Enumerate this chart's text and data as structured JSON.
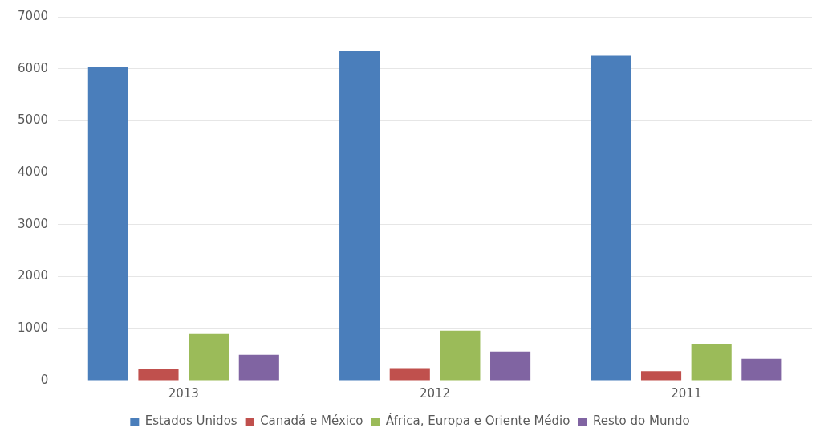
{
  "chart_data": {
    "type": "bar",
    "categories": [
      "2013",
      "2012",
      "2011"
    ],
    "series": [
      {
        "name": "Estados Unidos",
        "color": "#4a7ebb",
        "values": [
          6030,
          6350,
          6250
        ]
      },
      {
        "name": "Canadá e México",
        "color": "#c0504d",
        "values": [
          220,
          240,
          180
        ]
      },
      {
        "name": "África, Europa e Oriente Médio",
        "color": "#9bbb59",
        "values": [
          900,
          960,
          700
        ]
      },
      {
        "name": "Resto do Mundo",
        "color": "#8064a2",
        "values": [
          500,
          560,
          420
        ]
      }
    ],
    "ylim": [
      0,
      7000
    ],
    "yticks": [
      0,
      1000,
      2000,
      3000,
      4000,
      5000,
      6000,
      7000
    ],
    "grid": "y",
    "legend": "bottom"
  }
}
